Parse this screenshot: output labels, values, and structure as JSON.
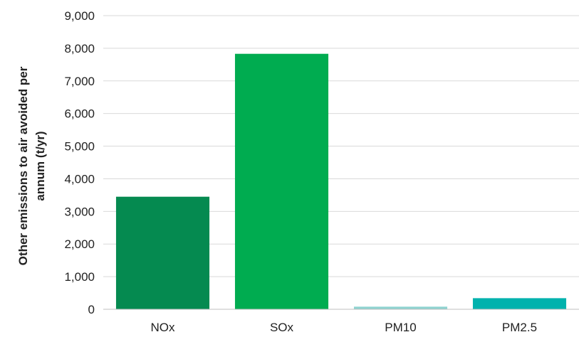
{
  "chart_data": {
    "type": "bar",
    "title": "",
    "xlabel": "",
    "ylabel_lines": [
      "Other emissions to air avoided per",
      "annum (t/yr)"
    ],
    "ylabel": "Other emissions to air avoided per annum (t/yr)",
    "ylim": [
      0,
      9000
    ],
    "y_ticks": [
      0,
      1000,
      2000,
      3000,
      4000,
      5000,
      6000,
      7000,
      8000,
      9000
    ],
    "y_tick_labels": [
      "0",
      "1,000",
      "2,000",
      "3,000",
      "4,000",
      "5,000",
      "6,000",
      "7,000",
      "8,000",
      "9,000"
    ],
    "grid": true,
    "categories": [
      "NOx",
      "SOx",
      "PM10",
      "PM2.5"
    ],
    "values": [
      3450,
      7830,
      80,
      340
    ],
    "colors": [
      "#058a50",
      "#00ac50",
      "#8fd3d0",
      "#00b2ad"
    ],
    "gridline_color": "#d9d9d9",
    "axis_color": "#bfbfbf"
  }
}
